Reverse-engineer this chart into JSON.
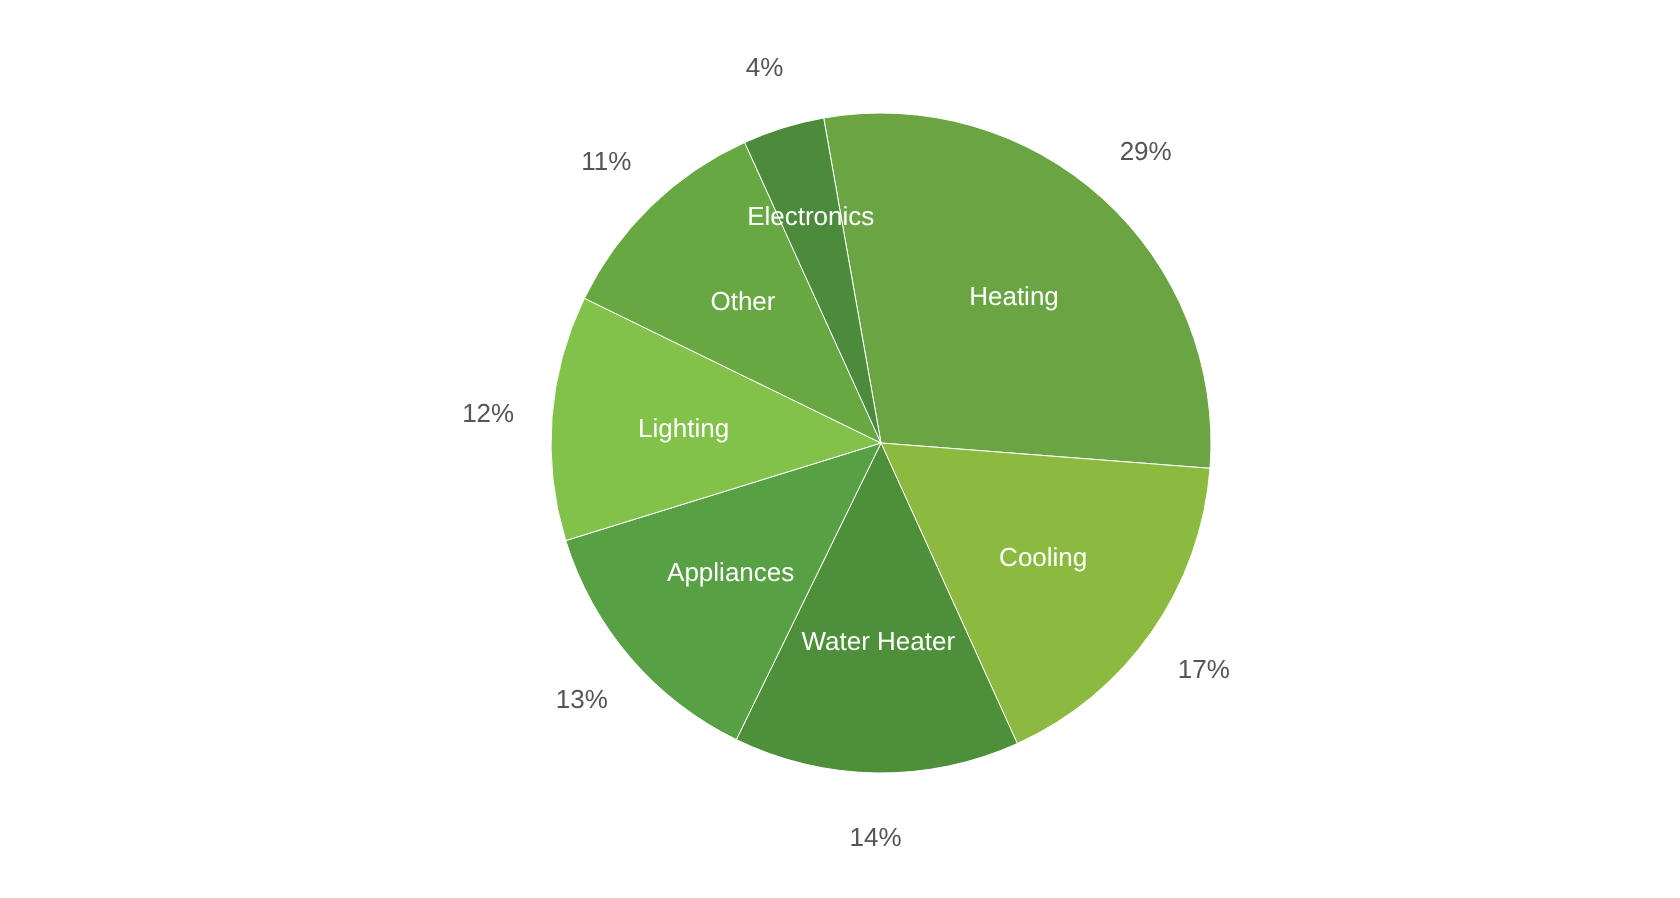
{
  "chart_data": {
    "type": "pie",
    "categories": [
      "Heating",
      "Cooling",
      "Water Heater",
      "Appliances",
      "Lighting",
      "Other",
      "Electronics"
    ],
    "values": [
      29,
      17,
      14,
      13,
      12,
      11,
      4
    ],
    "colors": [
      "#6ba543",
      "#8cba40",
      "#4e8f3a",
      "#58a044",
      "#82c14a",
      "#68a843",
      "#4b8b3b"
    ],
    "value_labels": [
      "29%",
      "17%",
      "14%",
      "13%",
      "12%",
      "11%",
      "4%"
    ]
  }
}
